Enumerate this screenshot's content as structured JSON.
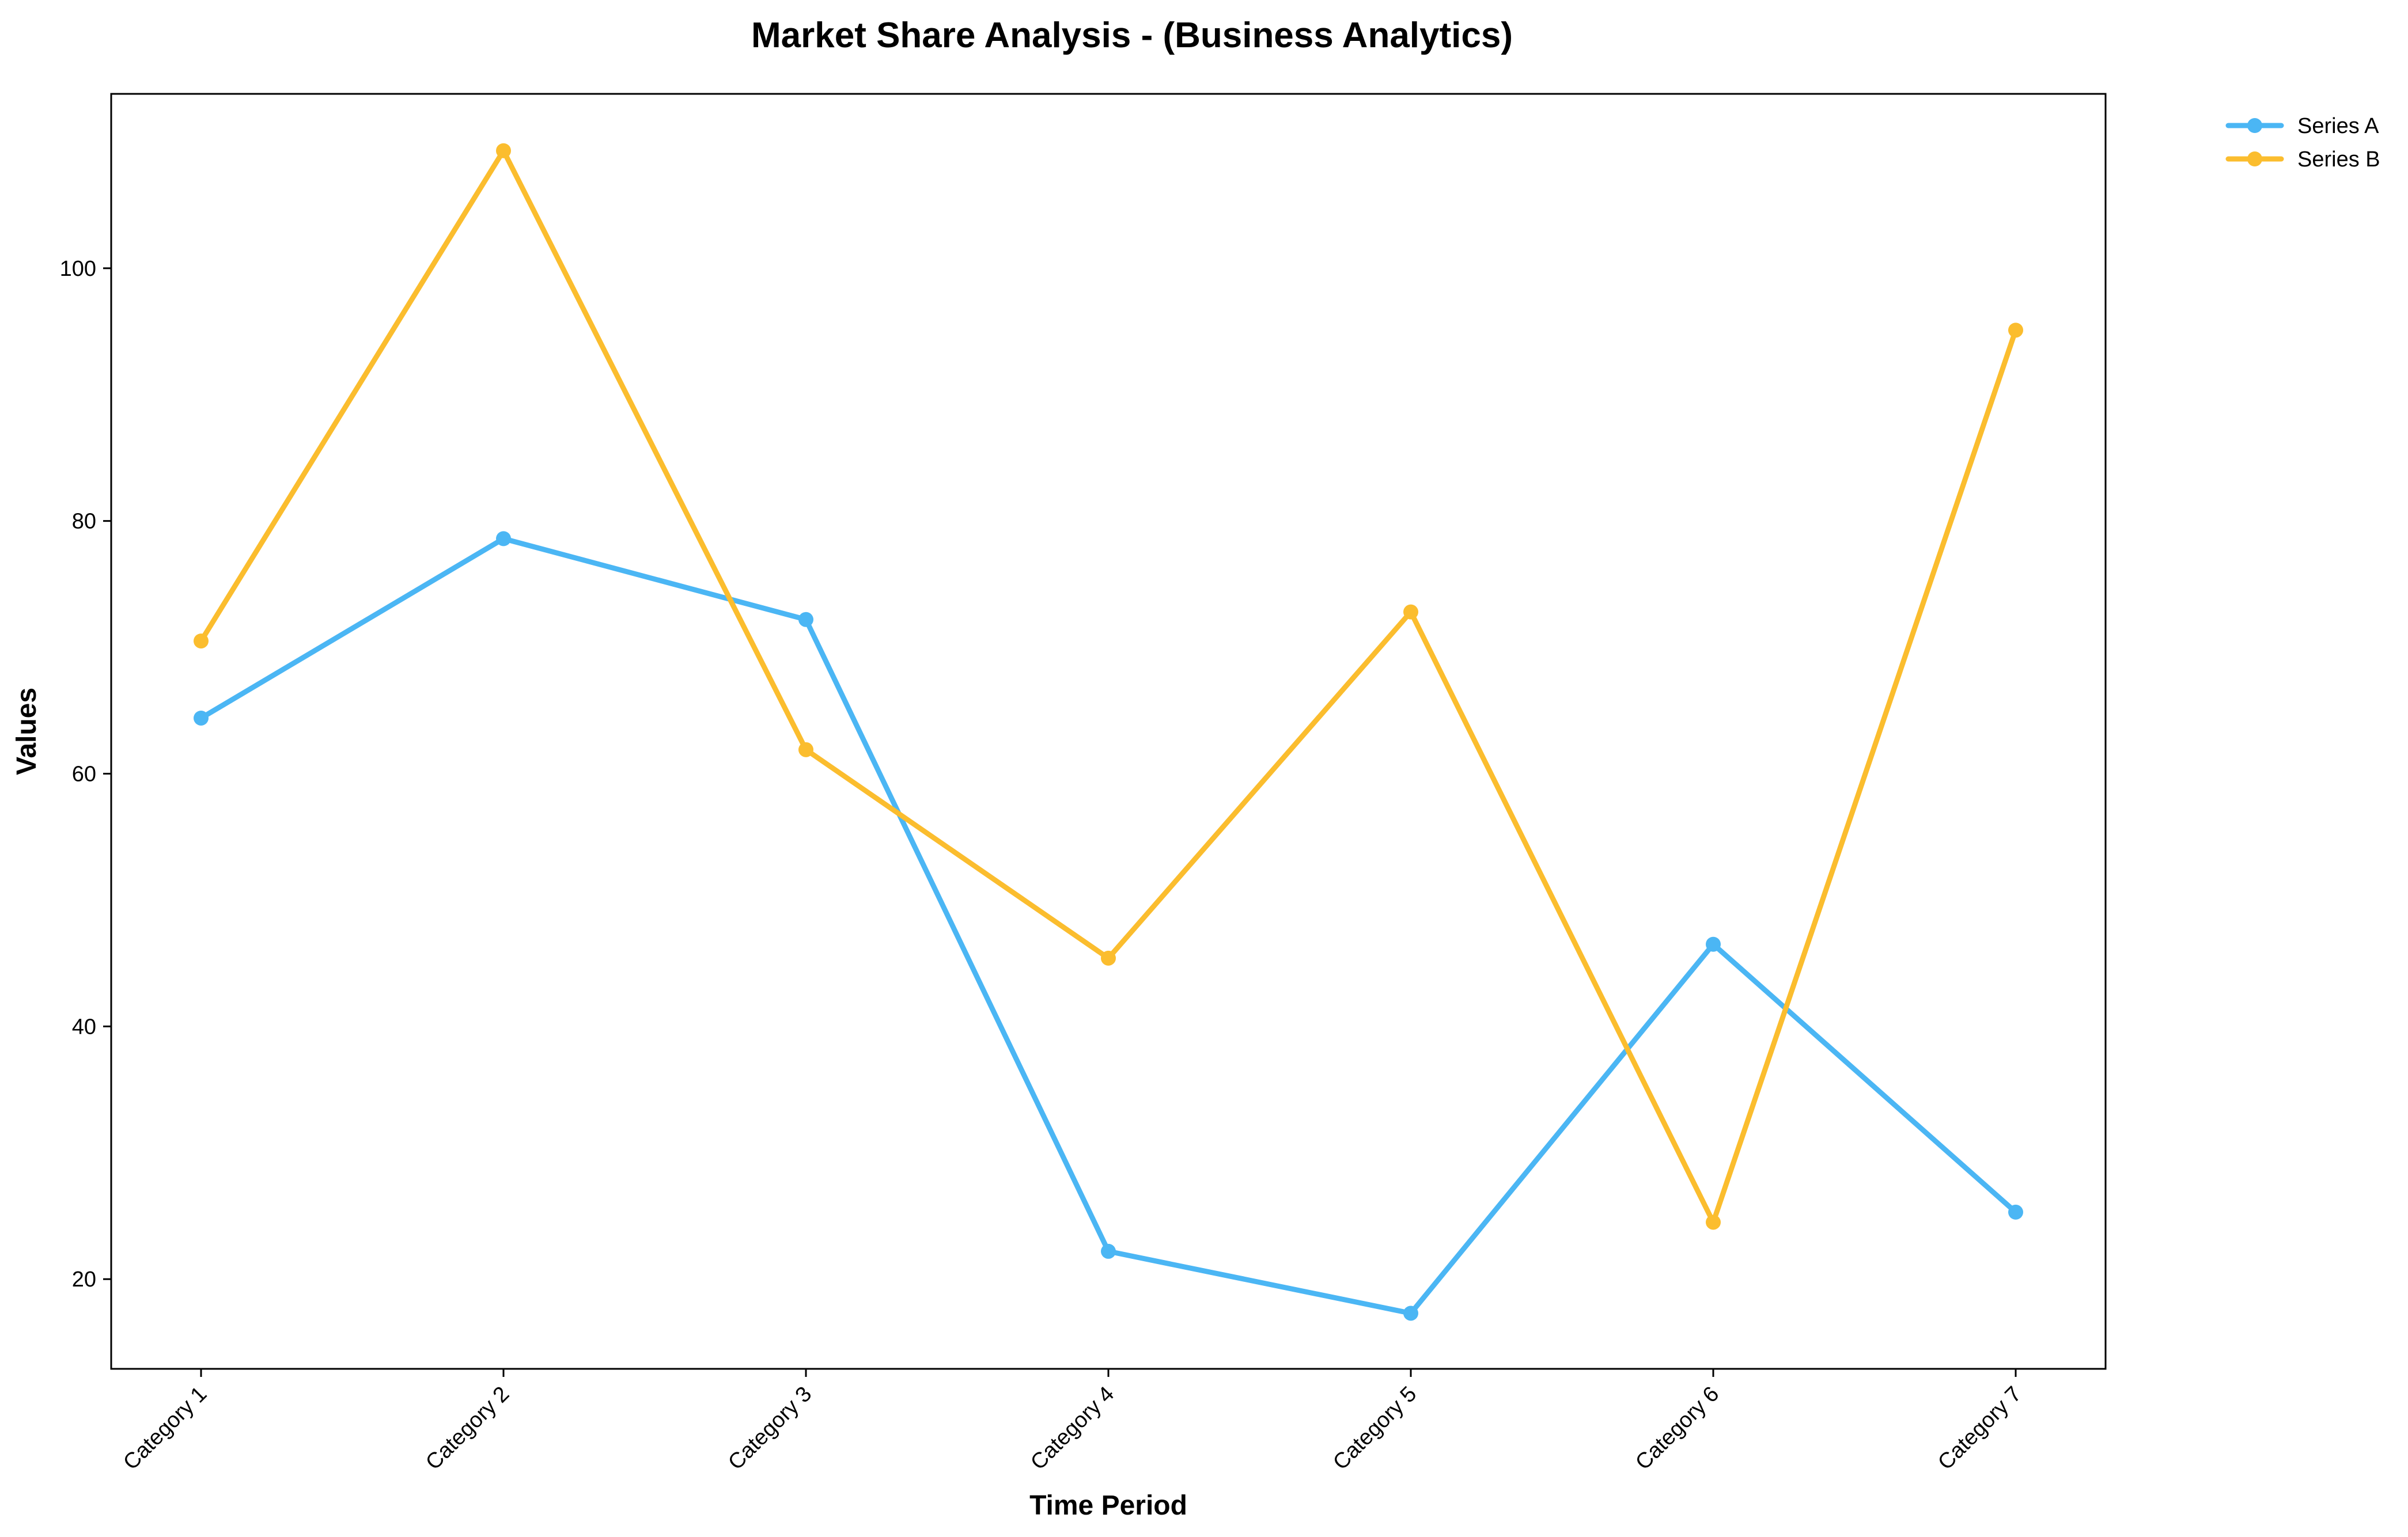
{
  "chart_data": {
    "type": "line",
    "title": "Market Share Analysis - (Business Analytics)",
    "xlabel": "Time Period",
    "ylabel": "Values",
    "categories": [
      "Category 1",
      "Category 2",
      "Category 3",
      "Category 4",
      "Category 5",
      "Category 6",
      "Category 7"
    ],
    "series": [
      {
        "name": "Series A",
        "color": "#4BB6F4",
        "values": [
          64.4,
          78.6,
          72.2,
          22.2,
          17.3,
          46.5,
          25.3
        ]
      },
      {
        "name": "Series B",
        "color": "#FBBD2E",
        "values": [
          70.5,
          109.3,
          61.9,
          45.4,
          72.8,
          24.5,
          95.1
        ]
      }
    ],
    "yticks": [
      20,
      40,
      60,
      80,
      100
    ],
    "ylim": [
      12.9,
      113.8
    ],
    "grid": false,
    "legend": "outside-top-right"
  }
}
